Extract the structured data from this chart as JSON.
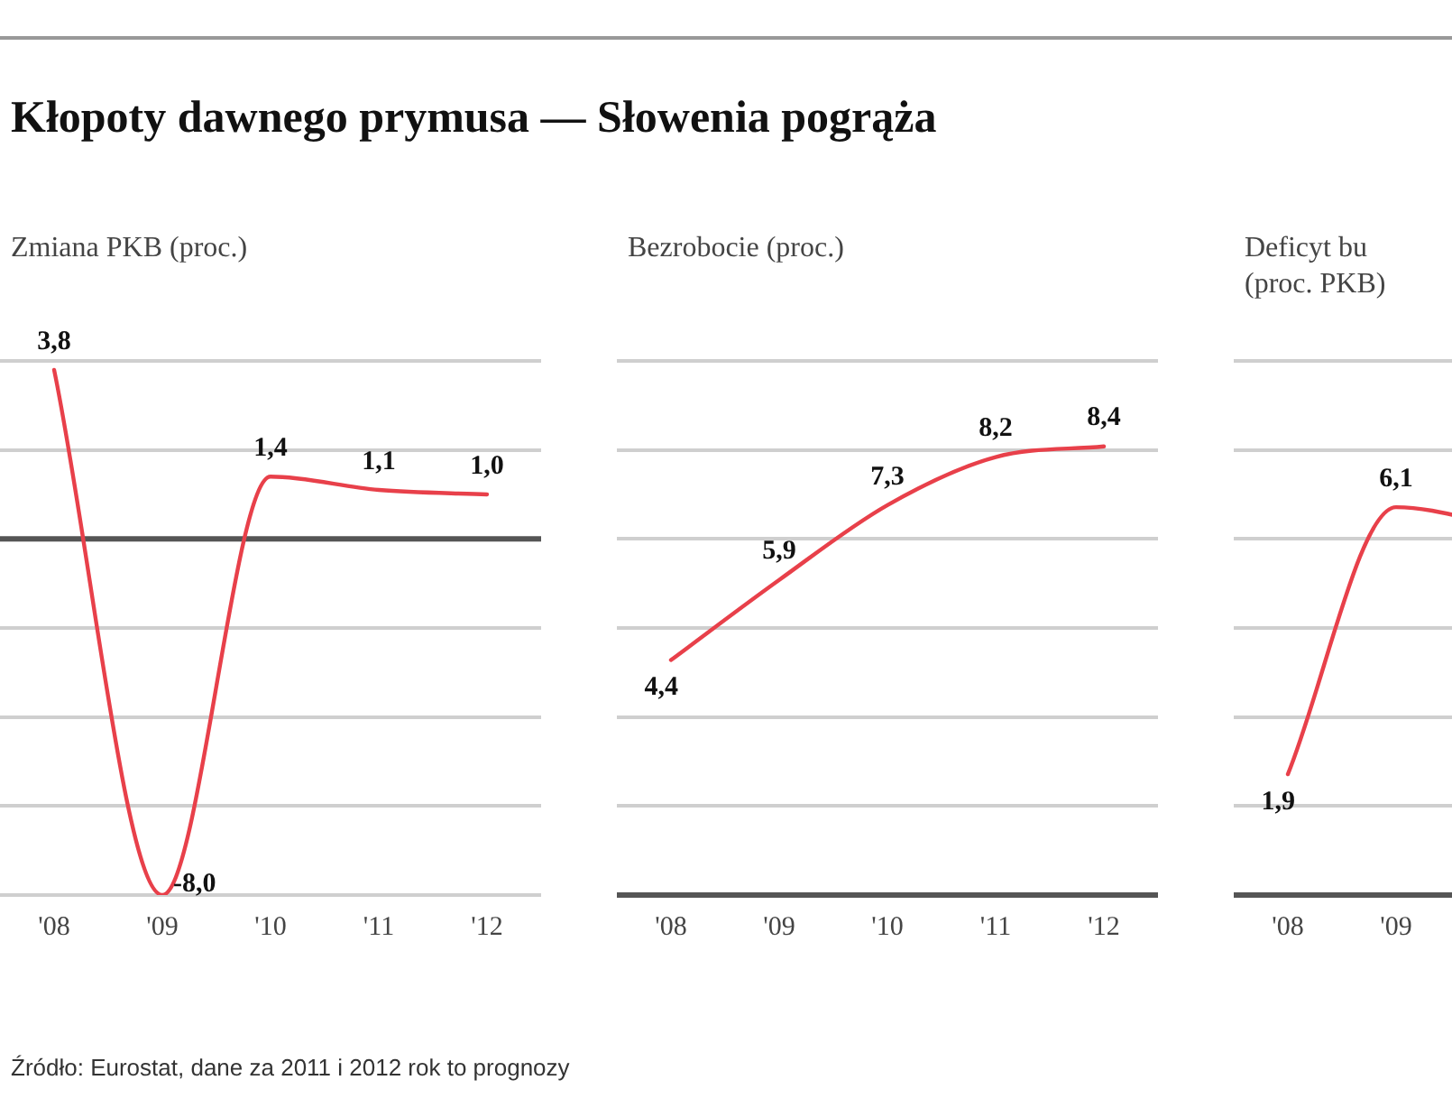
{
  "chart_data": [
    {
      "type": "line",
      "title": "Kłopoty dawnego prymusa — Słowenia pogrąża",
      "subtitle": "Zmiana PKB (proc.)",
      "categories": [
        "'08",
        "'09",
        "'10",
        "'11",
        "'12"
      ],
      "series": [
        {
          "color": "#e8404a",
          "values": [
            3.8,
            -8.0,
            1.4,
            1.1,
            1.0
          ],
          "value_labels": [
            "3,8",
            "-8,0",
            "1,4",
            "1,1",
            "1,0"
          ]
        }
      ],
      "ylim": [
        -8,
        4
      ],
      "yticks": [
        {
          "value": -8,
          "label": null
        },
        {
          "value": -6,
          "label": null
        },
        {
          "value": -4,
          "label": null
        },
        {
          "value": -2,
          "label": null
        },
        {
          "value": 0,
          "label": null
        },
        {
          "value": 2,
          "label": null
        },
        {
          "value": 4,
          "label": null
        }
      ],
      "grid": "y",
      "tick_labels": "x",
      "marker": "none",
      "line_style": "solid",
      "legend": false,
      "ref_lines": [
        {
          "axis": "y",
          "value": 0,
          "color": "#555555"
        }
      ],
      "annotations": [
        "Źródło: Eurostat, dane za 2011 i 2012 rok to prognozy"
      ]
    },
    {
      "type": "line",
      "subtitle": "Bezrobocie (proc.)",
      "categories": [
        "'08",
        "'09",
        "'10",
        "'11",
        "'12"
      ],
      "series": [
        {
          "color": "#e8404a",
          "values": [
            4.4,
            5.9,
            7.3,
            8.2,
            8.4
          ],
          "value_labels": [
            "4,4",
            "5,9",
            "7,3",
            "8,2",
            "8,4"
          ]
        }
      ],
      "ylim": [
        0,
        10
      ],
      "yticks": [
        {
          "value": 0,
          "label": null
        },
        {
          "value": 1.67,
          "label": null
        },
        {
          "value": 3.33,
          "label": null
        },
        {
          "value": 5,
          "label": null
        },
        {
          "value": 6.67,
          "label": null
        },
        {
          "value": 8.33,
          "label": null
        },
        {
          "value": 10,
          "label": null
        }
      ],
      "grid": "y",
      "tick_labels": "x",
      "marker": "none",
      "line_style": "solid",
      "legend": false
    },
    {
      "type": "line",
      "subtitle": "Deficyt bu\n(proc. PKB)",
      "categories": [
        "'08",
        "'09",
        null,
        null,
        null
      ],
      "series": [
        {
          "color": "#e8404a",
          "values": [
            1.9,
            6.1,
            5.8,
            null,
            null
          ],
          "value_labels": [
            "1,9",
            "6,1",
            null,
            null,
            null
          ]
        }
      ],
      "ylim": [
        0,
        8.4
      ],
      "yticks": [
        {
          "value": 0,
          "label": null
        },
        {
          "value": 1.4,
          "label": null
        },
        {
          "value": 2.8,
          "label": null
        },
        {
          "value": 4.2,
          "label": null
        },
        {
          "value": 5.6,
          "label": null
        },
        {
          "value": 7,
          "label": null
        },
        {
          "value": 8.4,
          "label": null
        }
      ],
      "grid": "y",
      "tick_labels": "x",
      "marker": "none",
      "line_style": "solid",
      "legend": false
    }
  ]
}
